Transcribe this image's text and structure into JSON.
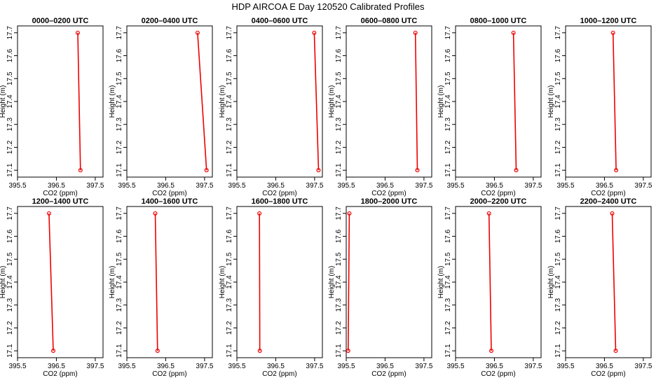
{
  "figure": {
    "title": "HDP AIRCOA E  Day 120520  Calibrated Profiles",
    "xlabel": "CO2 (ppm)",
    "ylabel": "Height (m)",
    "colors": {
      "profile": "#ee0000",
      "axes": "#000000",
      "background": "#ffffff"
    }
  },
  "chart_data": [
    {
      "type": "line",
      "title": "0000–0200 UTC",
      "x": [
        397.12,
        397.05
      ],
      "y": [
        17.1,
        17.7
      ],
      "xlim": [
        395.5,
        397.7
      ],
      "ylim": [
        17.07,
        17.73
      ],
      "xticks": [
        "395.5",
        "396.5",
        "397.5"
      ],
      "yticks": [
        "17.1",
        "17.2",
        "17.3",
        "17.4",
        "17.5",
        "17.6",
        "17.7"
      ],
      "grid": false
    },
    {
      "type": "line",
      "title": "0200–0400 UTC",
      "x": [
        397.55,
        397.32
      ],
      "y": [
        17.1,
        17.7
      ],
      "xlim": [
        395.5,
        397.7
      ],
      "ylim": [
        17.07,
        17.73
      ],
      "xticks": [
        "395.5",
        "396.5",
        "397.5"
      ],
      "yticks": [
        "17.1",
        "17.2",
        "17.3",
        "17.4",
        "17.5",
        "17.6",
        "17.7"
      ],
      "grid": false
    },
    {
      "type": "line",
      "title": "0400–0600 UTC",
      "x": [
        397.6,
        397.49
      ],
      "y": [
        17.1,
        17.7
      ],
      "xlim": [
        395.5,
        397.7
      ],
      "ylim": [
        17.07,
        17.73
      ],
      "xticks": [
        "395.5",
        "396.5",
        "397.5"
      ],
      "yticks": [
        "17.1",
        "17.2",
        "17.3",
        "17.4",
        "17.5",
        "17.6",
        "17.7"
      ],
      "grid": false
    },
    {
      "type": "line",
      "title": "0600–0800 UTC",
      "x": [
        397.33,
        397.28
      ],
      "y": [
        17.1,
        17.7
      ],
      "xlim": [
        395.5,
        397.7
      ],
      "ylim": [
        17.07,
        17.73
      ],
      "xticks": [
        "395.5",
        "396.5",
        "397.5"
      ],
      "yticks": [
        "17.1",
        "17.2",
        "17.3",
        "17.4",
        "17.5",
        "17.6",
        "17.7"
      ],
      "grid": false
    },
    {
      "type": "line",
      "title": "0800–1000 UTC",
      "x": [
        397.06,
        396.99
      ],
      "y": [
        17.1,
        17.7
      ],
      "xlim": [
        395.5,
        397.7
      ],
      "ylim": [
        17.07,
        17.73
      ],
      "xticks": [
        "395.5",
        "396.5",
        "397.5"
      ],
      "yticks": [
        "17.1",
        "17.2",
        "17.3",
        "17.4",
        "17.5",
        "17.6",
        "17.7"
      ],
      "grid": false
    },
    {
      "type": "line",
      "title": "1000–1200 UTC",
      "x": [
        396.8,
        396.72
      ],
      "y": [
        17.1,
        17.7
      ],
      "xlim": [
        395.5,
        397.7
      ],
      "ylim": [
        17.07,
        17.73
      ],
      "xticks": [
        "395.5",
        "396.5",
        "397.5"
      ],
      "yticks": [
        "17.1",
        "17.2",
        "17.3",
        "17.4",
        "17.5",
        "17.6",
        "17.7"
      ],
      "grid": false
    },
    {
      "type": "line",
      "title": "1200–1400 UTC",
      "x": [
        396.42,
        396.31
      ],
      "y": [
        17.1,
        17.7
      ],
      "xlim": [
        395.5,
        397.7
      ],
      "ylim": [
        17.07,
        17.73
      ],
      "xticks": [
        "395.5",
        "396.5",
        "397.5"
      ],
      "yticks": [
        "17.1",
        "17.2",
        "17.3",
        "17.4",
        "17.5",
        "17.6",
        "17.7"
      ],
      "grid": false
    },
    {
      "type": "line",
      "title": "1400–1600 UTC",
      "x": [
        396.29,
        396.23
      ],
      "y": [
        17.1,
        17.7
      ],
      "xlim": [
        395.5,
        397.7
      ],
      "ylim": [
        17.07,
        17.73
      ],
      "xticks": [
        "395.5",
        "396.5",
        "397.5"
      ],
      "yticks": [
        "17.1",
        "17.2",
        "17.3",
        "17.4",
        "17.5",
        "17.6",
        "17.7"
      ],
      "grid": false
    },
    {
      "type": "line",
      "title": "1600–1800 UTC",
      "x": [
        396.09,
        396.08
      ],
      "y": [
        17.1,
        17.7
      ],
      "xlim": [
        395.5,
        397.7
      ],
      "ylim": [
        17.07,
        17.73
      ],
      "xticks": [
        "395.5",
        "396.5",
        "397.5"
      ],
      "yticks": [
        "17.1",
        "17.2",
        "17.3",
        "17.4",
        "17.5",
        "17.6",
        "17.7"
      ],
      "grid": false
    },
    {
      "type": "line",
      "title": "1800–2000 UTC",
      "x": [
        395.55,
        395.58
      ],
      "y": [
        17.1,
        17.7
      ],
      "xlim": [
        395.5,
        397.7
      ],
      "ylim": [
        17.07,
        17.73
      ],
      "xticks": [
        "395.5",
        "396.5",
        "397.5"
      ],
      "yticks": [
        "17.1",
        "17.2",
        "17.3",
        "17.4",
        "17.5",
        "17.6",
        "17.7"
      ],
      "grid": false
    },
    {
      "type": "line",
      "title": "2000–2200 UTC",
      "x": [
        396.42,
        396.36
      ],
      "y": [
        17.1,
        17.7
      ],
      "xlim": [
        395.5,
        397.7
      ],
      "ylim": [
        17.07,
        17.73
      ],
      "xticks": [
        "395.5",
        "396.5",
        "397.5"
      ],
      "yticks": [
        "17.1",
        "17.2",
        "17.3",
        "17.4",
        "17.5",
        "17.6",
        "17.7"
      ],
      "grid": false
    },
    {
      "type": "line",
      "title": "2200–2400 UTC",
      "x": [
        396.79,
        396.7
      ],
      "y": [
        17.1,
        17.7
      ],
      "xlim": [
        395.5,
        397.7
      ],
      "ylim": [
        17.07,
        17.73
      ],
      "xticks": [
        "395.5",
        "396.5",
        "397.5"
      ],
      "yticks": [
        "17.1",
        "17.2",
        "17.3",
        "17.4",
        "17.5",
        "17.6",
        "17.7"
      ],
      "grid": false
    }
  ]
}
